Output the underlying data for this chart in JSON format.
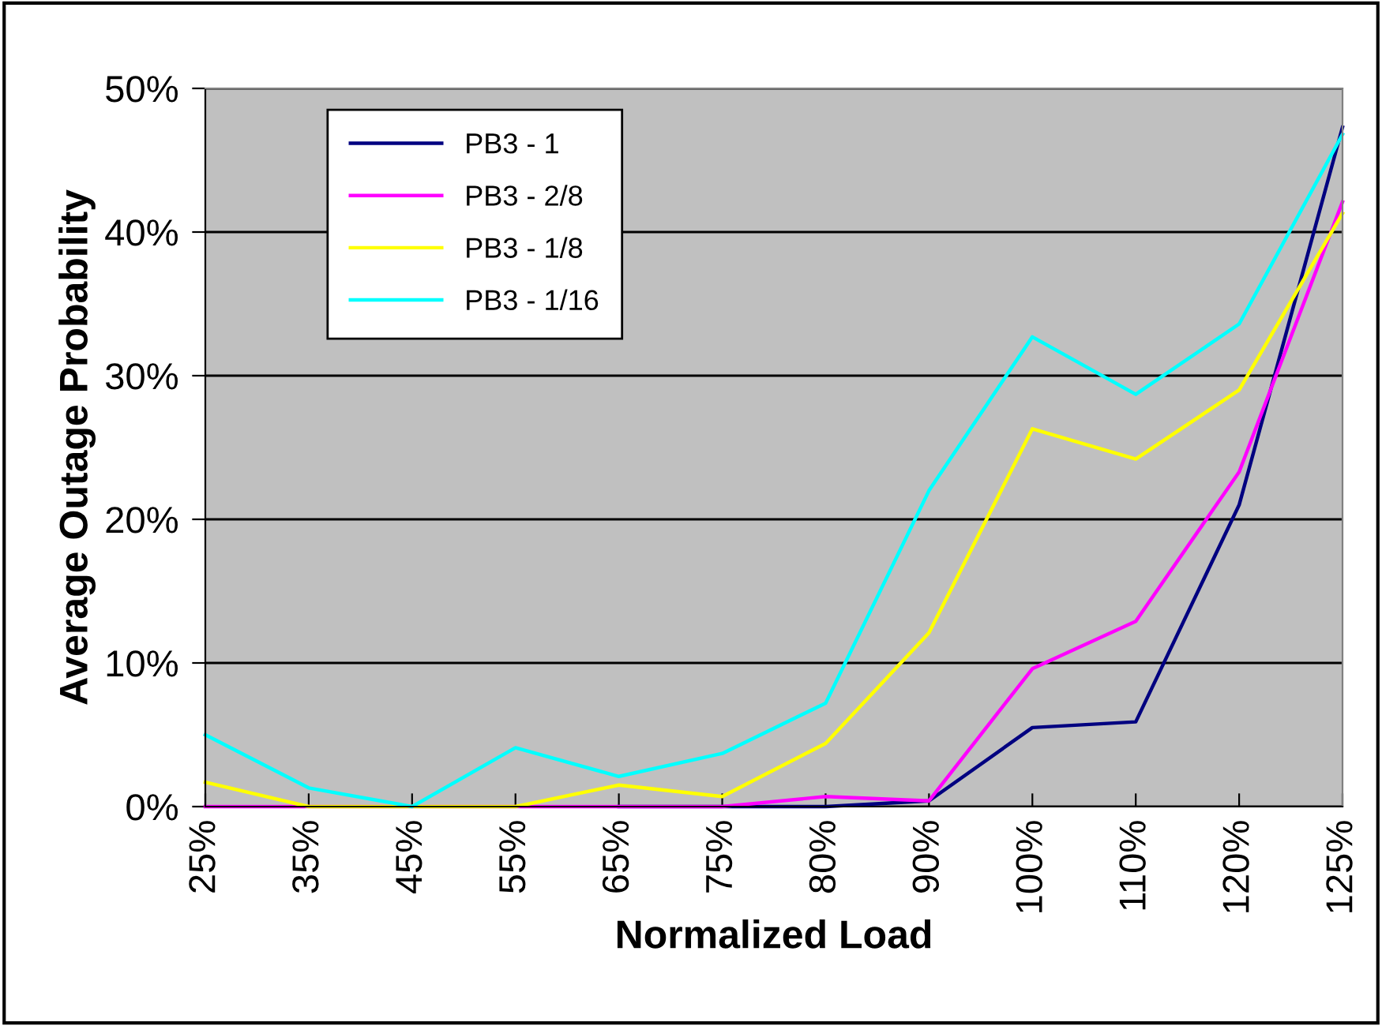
{
  "chart_data": {
    "type": "line",
    "xlabel": "Normalized Load",
    "ylabel": "Average Outage Probability",
    "categories": [
      "25%",
      "35%",
      "45%",
      "55%",
      "65%",
      "75%",
      "80%",
      "90%",
      "100%",
      "110%",
      "120%",
      "125%"
    ],
    "series": [
      {
        "name": "PB3 - 1",
        "color": "#000080",
        "values": [
          null,
          null,
          null,
          null,
          0,
          0,
          0,
          0.4,
          5.5,
          5.9,
          21.0,
          47.3
        ]
      },
      {
        "name": "PB3 - 2/8",
        "color": "#ff00ff",
        "values": [
          0,
          0,
          0,
          0,
          0,
          0,
          0.7,
          0.4,
          9.6,
          12.9,
          23.3,
          42.1
        ]
      },
      {
        "name": "PB3 - 1/8",
        "color": "#ffff00",
        "values": [
          1.7,
          0,
          0,
          0,
          1.5,
          0.7,
          4.4,
          12.1,
          26.3,
          24.2,
          29.0,
          41.3
        ]
      },
      {
        "name": "PB3 - 1/16",
        "color": "#00ffff",
        "values": [
          5.0,
          1.3,
          0,
          4.1,
          2.1,
          3.7,
          7.2,
          22.0,
          32.7,
          28.7,
          33.6,
          46.8
        ]
      }
    ],
    "ylim": [
      0,
      50
    ],
    "yticks": [
      {
        "value": 0,
        "label": "0%"
      },
      {
        "value": 10,
        "label": "10%"
      },
      {
        "value": 20,
        "label": "20%"
      },
      {
        "value": 30,
        "label": "30%"
      },
      {
        "value": 40,
        "label": "40%"
      },
      {
        "value": 50,
        "label": "50%"
      }
    ],
    "grid": "y",
    "legend": "top left",
    "marker": "none",
    "line_style": "solid"
  }
}
